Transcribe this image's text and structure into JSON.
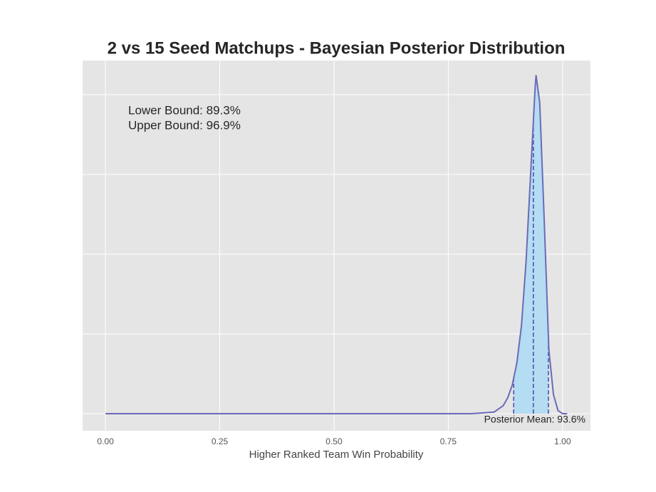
{
  "chart_data": {
    "type": "line",
    "title": "2 vs 15 Seed Matchups - Bayesian Posterior Distribution",
    "x_label": "Higher Ranked Team Win Probability",
    "x": [
      0,
      0.25,
      0.5,
      0.75,
      0.8,
      0.85,
      0.87,
      0.88,
      0.89,
      0.9,
      0.91,
      0.92,
      0.93,
      0.94,
      0.942,
      0.95,
      0.96,
      0.97,
      0.98,
      0.99,
      1.0,
      1.01
    ],
    "series": [
      {
        "color": "#6b6bb8",
        "values": [
          0,
          0,
          0,
          0,
          0,
          0.1,
          0.5,
          1,
          1.8,
          3.2,
          5.5,
          9.5,
          15,
          20.5,
          21.2,
          19.5,
          12,
          4,
          1.2,
          0.2,
          0,
          0
        ]
      }
    ],
    "fill_color": "#b4dcf2",
    "dash_color": "#4a4aaa",
    "lower_bound": {
      "value": 0.893,
      "label": "Lower Bound:  89.3%"
    },
    "upper_bound": {
      "value": 0.969,
      "label": "Upper Bound:  96.9%"
    },
    "posterior_mean": {
      "value": 0.936,
      "label": "Posterior Mean:  93.6%"
    },
    "xlim": [
      -0.05,
      1.061
    ],
    "ylim": [
      -1.07,
      22.14
    ],
    "xticks": [
      {
        "value": 0,
        "label": "0.00"
      },
      {
        "value": 0.25,
        "label": "0.25"
      },
      {
        "value": 0.5,
        "label": "0.50"
      },
      {
        "value": 0.75,
        "label": "0.75"
      },
      {
        "value": 1,
        "label": "1.00"
      }
    ],
    "yticks": [
      0,
      5,
      10,
      15,
      20
    ],
    "ytick_labels": false,
    "grid": true
  }
}
